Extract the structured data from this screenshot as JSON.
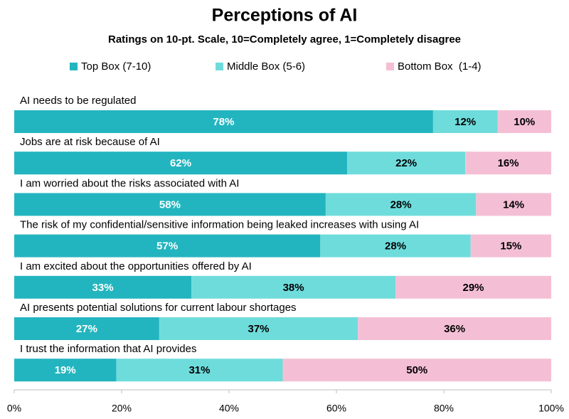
{
  "chart_data": {
    "type": "stacked-barh",
    "title": "Perceptions of AI",
    "subtitle": "Ratings on 10-pt. Scale, 10=Completely agree, 1=Completely disagree",
    "categories": [
      "AI needs to be regulated",
      "Jobs are at risk because of AI",
      "I am worried about the risks associated with AI",
      "The risk of my confidential/sensitive information being leaked increases with using AI",
      "I am excited about the opportunities offered by AI",
      "AI presents potential solutions for current labour shortages",
      "I trust the information that AI provides"
    ],
    "series": [
      {
        "name": "Top Box (7-10)",
        "color": "#23b5bf",
        "values": [
          78,
          62,
          58,
          57,
          33,
          27,
          19
        ],
        "value_labels": [
          "78%",
          "62%",
          "58%",
          "57%",
          "33%",
          "27%",
          "19%"
        ]
      },
      {
        "name": "Middle Box (5-6)",
        "color": "#6fdcdc",
        "values": [
          12,
          22,
          28,
          28,
          38,
          37,
          31
        ],
        "value_labels": [
          "12%",
          "22%",
          "28%",
          "28%",
          "38%",
          "37%",
          "31%"
        ]
      },
      {
        "name": "Bottom Box  (1-4)",
        "color": "#f4bfd4",
        "values": [
          10,
          16,
          14,
          15,
          29,
          36,
          50
        ],
        "value_labels": [
          "10%",
          "16%",
          "14%",
          "15%",
          "29%",
          "36%",
          "50%"
        ]
      }
    ],
    "xlim": [
      0,
      100
    ],
    "xticks": [
      {
        "value": 0,
        "label": "0%"
      },
      {
        "value": 20,
        "label": "20%"
      },
      {
        "value": 40,
        "label": "40%"
      },
      {
        "value": 60,
        "label": "60%"
      },
      {
        "value": 80,
        "label": "80%"
      },
      {
        "value": 100,
        "label": "100%"
      }
    ]
  }
}
